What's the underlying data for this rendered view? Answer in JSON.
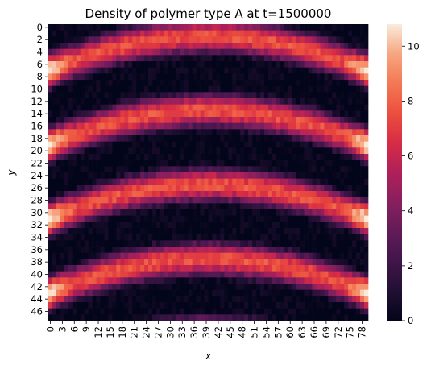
{
  "chart_data": {
    "type": "heatmap",
    "title": "Density of polymer type A at t=1500000",
    "xlabel": "x",
    "ylabel": "y",
    "nx": 80,
    "ny": 48,
    "x_tick_labels": [
      "0",
      "3",
      "6",
      "9",
      "12",
      "15",
      "18",
      "21",
      "24",
      "27",
      "30",
      "33",
      "36",
      "39",
      "42",
      "45",
      "48",
      "51",
      "54",
      "57",
      "60",
      "63",
      "66",
      "69",
      "72",
      "75",
      "78"
    ],
    "y_tick_labels": [
      "0",
      "2",
      "4",
      "6",
      "8",
      "10",
      "12",
      "14",
      "16",
      "18",
      "20",
      "22",
      "24",
      "26",
      "28",
      "30",
      "32",
      "34",
      "36",
      "38",
      "40",
      "42",
      "44",
      "46"
    ],
    "colorbar": {
      "min": 0,
      "max": 10.8,
      "tick_labels": [
        "0",
        "2",
        "4",
        "6",
        "8",
        "10"
      ],
      "colormap": "rocket"
    },
    "pattern": {
      "description": "arched stripes of high density, period ~12 rows in y, curving upward toward center x",
      "stripe_period_y": 12,
      "arch_depth_rows": 5.5,
      "peak_value": 10.8,
      "stripe_centers_at_edges_y": [
        7,
        19,
        31,
        43
      ]
    }
  }
}
